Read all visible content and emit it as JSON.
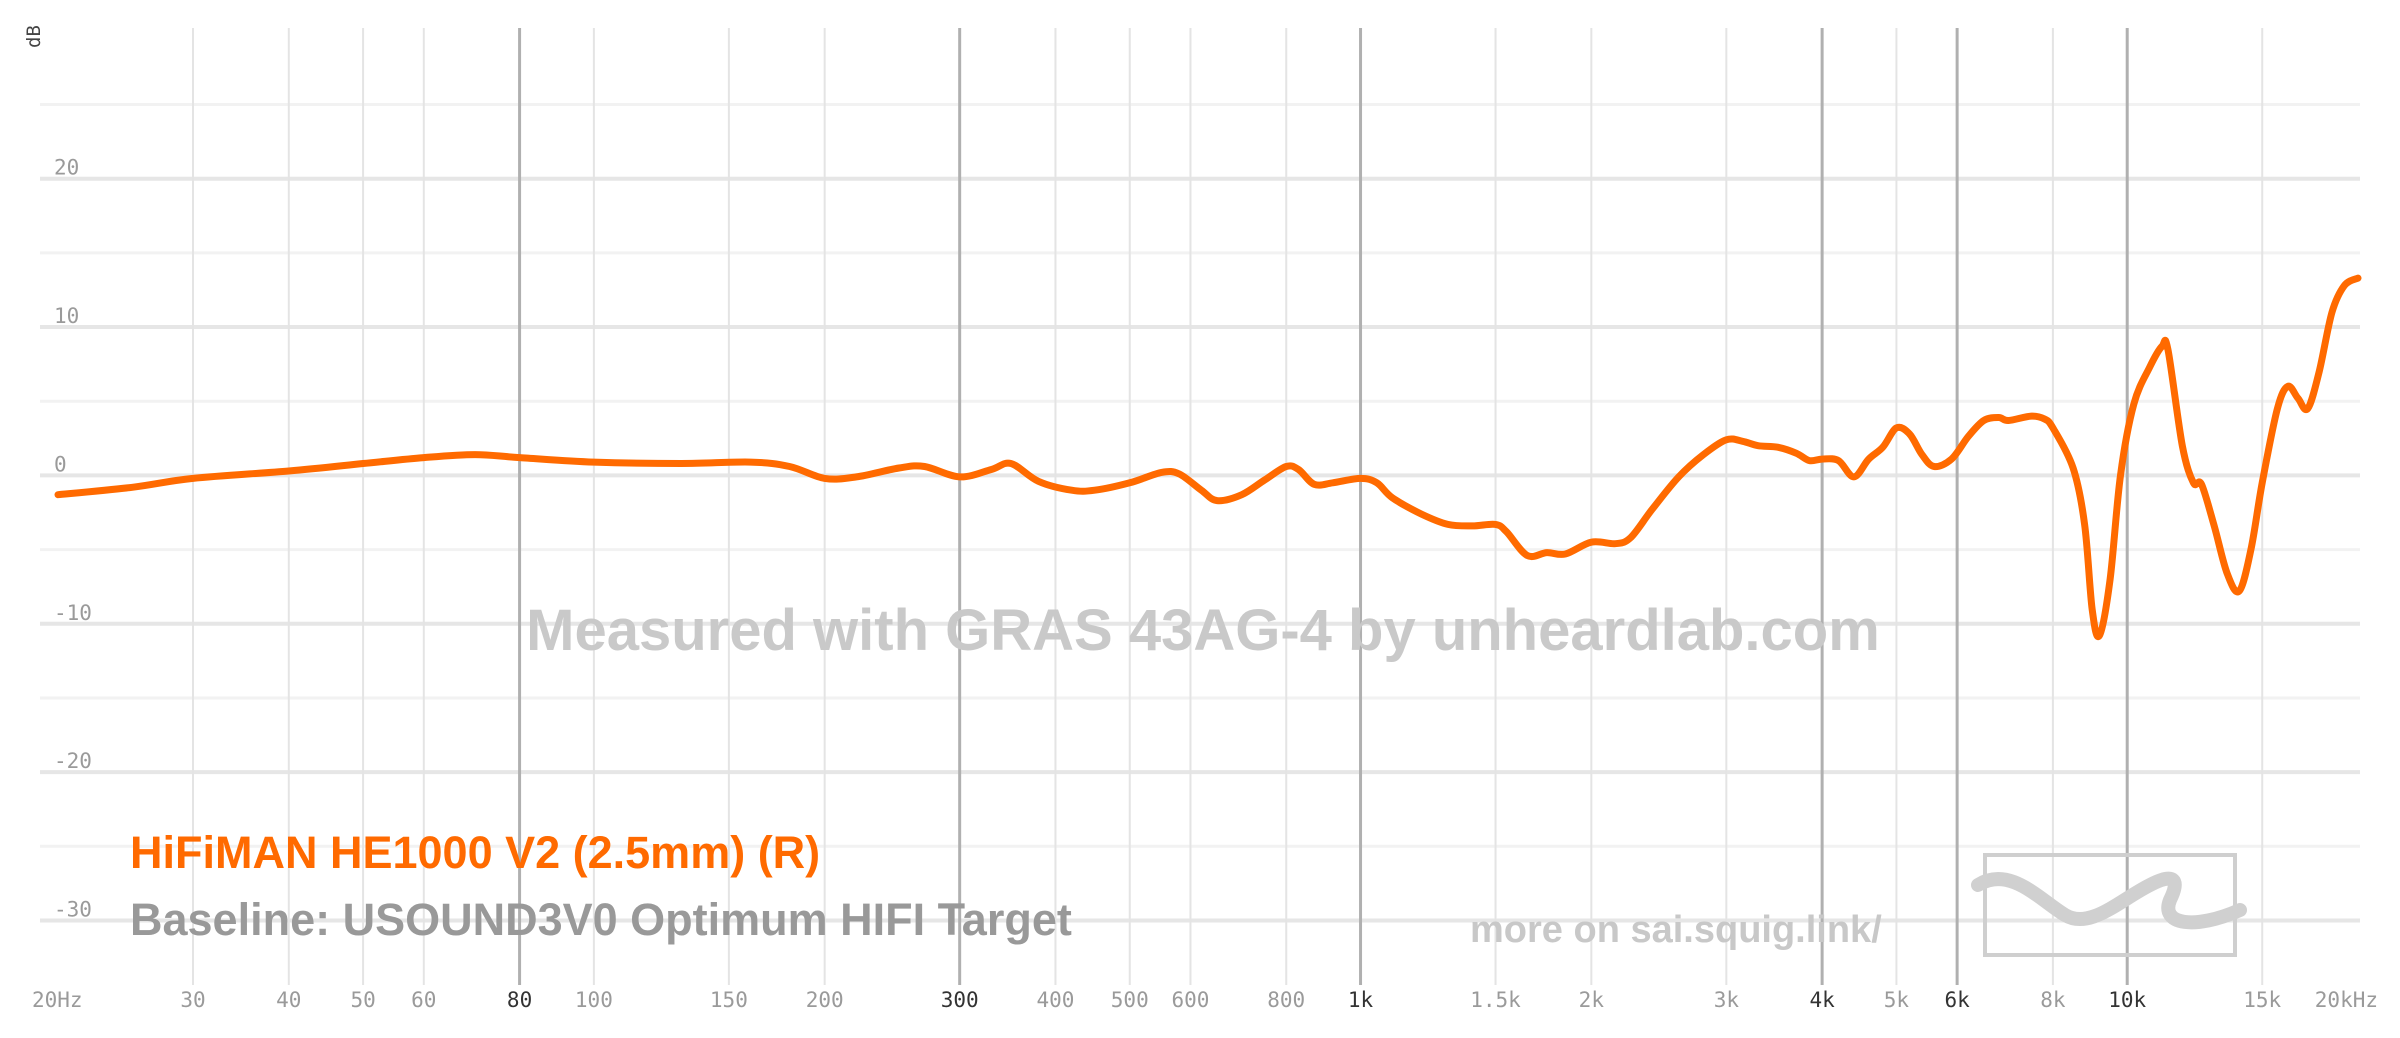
{
  "chart_data": {
    "type": "line",
    "ylabel": "dB",
    "xlabel": "",
    "x_scale": "log",
    "ylim": [
      -33,
      28
    ],
    "xlim": [
      20,
      20000
    ],
    "y_ticks": [
      {
        "value": 20,
        "label": "20"
      },
      {
        "value": 10,
        "label": "10"
      },
      {
        "value": 0,
        "label": "0"
      },
      {
        "value": -10,
        "label": "-10"
      },
      {
        "value": -20,
        "label": "-20"
      },
      {
        "value": -30,
        "label": "-30"
      }
    ],
    "x_ticks": [
      {
        "value": 20,
        "label": "20Hz",
        "major": false
      },
      {
        "value": 30,
        "label": "30",
        "major": false
      },
      {
        "value": 40,
        "label": "40",
        "major": false
      },
      {
        "value": 50,
        "label": "50",
        "major": false
      },
      {
        "value": 60,
        "label": "60",
        "major": false
      },
      {
        "value": 80,
        "label": "80",
        "major": true
      },
      {
        "value": 100,
        "label": "100",
        "major": false
      },
      {
        "value": 150,
        "label": "150",
        "major": false
      },
      {
        "value": 200,
        "label": "200",
        "major": false
      },
      {
        "value": 300,
        "label": "300",
        "major": true
      },
      {
        "value": 400,
        "label": "400",
        "major": false
      },
      {
        "value": 500,
        "label": "500",
        "major": false
      },
      {
        "value": 600,
        "label": "600",
        "major": false
      },
      {
        "value": 800,
        "label": "800",
        "major": false
      },
      {
        "value": 1000,
        "label": "1k",
        "major": true
      },
      {
        "value": 1500,
        "label": "1.5k",
        "major": false
      },
      {
        "value": 2000,
        "label": "2k",
        "major": false
      },
      {
        "value": 3000,
        "label": "3k",
        "major": false
      },
      {
        "value": 4000,
        "label": "4k",
        "major": true
      },
      {
        "value": 5000,
        "label": "5k",
        "major": false
      },
      {
        "value": 6000,
        "label": "6k",
        "major": true
      },
      {
        "value": 8000,
        "label": "8k",
        "major": false
      },
      {
        "value": 10000,
        "label": "10k",
        "major": true
      },
      {
        "value": 15000,
        "label": "15k",
        "major": false
      },
      {
        "value": 20000,
        "label": "20kHz",
        "major": false
      }
    ],
    "minor_y_lines": [
      25,
      15,
      5,
      -5,
      -15,
      -25
    ],
    "series": [
      {
        "name": "HiFiMAN HE1000 V2 (2.5mm) (R)",
        "color": "#ff6a00",
        "points": [
          [
            20,
            -1.3
          ],
          [
            25,
            -0.8
          ],
          [
            30,
            -0.2
          ],
          [
            40,
            0.3
          ],
          [
            50,
            0.8
          ],
          [
            60,
            1.2
          ],
          [
            70,
            1.4
          ],
          [
            80,
            1.2
          ],
          [
            100,
            0.9
          ],
          [
            130,
            0.8
          ],
          [
            160,
            0.9
          ],
          [
            180,
            0.6
          ],
          [
            200,
            -0.2
          ],
          [
            220,
            -0.1
          ],
          [
            250,
            0.5
          ],
          [
            270,
            0.6
          ],
          [
            300,
            -0.1
          ],
          [
            330,
            0.4
          ],
          [
            350,
            0.8
          ],
          [
            380,
            -0.4
          ],
          [
            420,
            -1.0
          ],
          [
            450,
            -1.0
          ],
          [
            500,
            -0.5
          ],
          [
            550,
            0.2
          ],
          [
            580,
            0.1
          ],
          [
            620,
            -1.0
          ],
          [
            650,
            -1.7
          ],
          [
            700,
            -1.3
          ],
          [
            750,
            -0.3
          ],
          [
            800,
            0.6
          ],
          [
            830,
            0.4
          ],
          [
            870,
            -0.6
          ],
          [
            920,
            -0.5
          ],
          [
            1000,
            -0.2
          ],
          [
            1050,
            -0.5
          ],
          [
            1100,
            -1.5
          ],
          [
            1200,
            -2.6
          ],
          [
            1300,
            -3.3
          ],
          [
            1400,
            -3.4
          ],
          [
            1500,
            -3.3
          ],
          [
            1550,
            -3.8
          ],
          [
            1650,
            -5.4
          ],
          [
            1750,
            -5.2
          ],
          [
            1850,
            -5.3
          ],
          [
            2000,
            -4.5
          ],
          [
            2150,
            -4.6
          ],
          [
            2250,
            -4.2
          ],
          [
            2400,
            -2.3
          ],
          [
            2600,
            -0.1
          ],
          [
            2800,
            1.4
          ],
          [
            3000,
            2.4
          ],
          [
            3150,
            2.3
          ],
          [
            3300,
            2.0
          ],
          [
            3500,
            1.9
          ],
          [
            3700,
            1.5
          ],
          [
            3850,
            1.0
          ],
          [
            4000,
            1.1
          ],
          [
            4200,
            1.0
          ],
          [
            4400,
            -0.1
          ],
          [
            4600,
            1.1
          ],
          [
            4800,
            1.9
          ],
          [
            5000,
            3.2
          ],
          [
            5200,
            2.8
          ],
          [
            5400,
            1.4
          ],
          [
            5600,
            0.6
          ],
          [
            5900,
            1.1
          ],
          [
            6200,
            2.6
          ],
          [
            6500,
            3.7
          ],
          [
            6800,
            3.9
          ],
          [
            7000,
            3.7
          ],
          [
            7500,
            4.0
          ],
          [
            7800,
            3.8
          ],
          [
            8000,
            3.2
          ],
          [
            8500,
            0.5
          ],
          [
            8800,
            -3.3
          ],
          [
            9000,
            -9.0
          ],
          [
            9200,
            -10.8
          ],
          [
            9500,
            -7.0
          ],
          [
            9800,
            0.0
          ],
          [
            10200,
            4.8
          ],
          [
            10700,
            7.3
          ],
          [
            11100,
            8.7
          ],
          [
            11300,
            8.5
          ],
          [
            11800,
            2.0
          ],
          [
            12200,
            -0.5
          ],
          [
            12500,
            -0.6
          ],
          [
            13000,
            -3.5
          ],
          [
            13500,
            -6.6
          ],
          [
            14000,
            -7.8
          ],
          [
            14500,
            -5.0
          ],
          [
            15000,
            -0.5
          ],
          [
            15700,
            4.5
          ],
          [
            16200,
            6.0
          ],
          [
            16700,
            5.2
          ],
          [
            17200,
            4.5
          ],
          [
            17800,
            7.0
          ],
          [
            18500,
            11.0
          ],
          [
            19200,
            12.8
          ],
          [
            20000,
            13.3
          ]
        ]
      }
    ],
    "legend": {
      "series_label": "HiFiMAN HE1000 V2 (2.5mm) (R)",
      "baseline_label": "Baseline: USOUND3V0 Optimum HIFI Target"
    },
    "annotations": {
      "watermark": "Measured with GRAS 43AG-4 by unheardlab.com",
      "more_link": "more on sai.squig.link/"
    },
    "colors": {
      "series": "#ff6a00",
      "baseline_text": "#999999",
      "watermark": "#c9c9c9"
    },
    "grid": true
  }
}
